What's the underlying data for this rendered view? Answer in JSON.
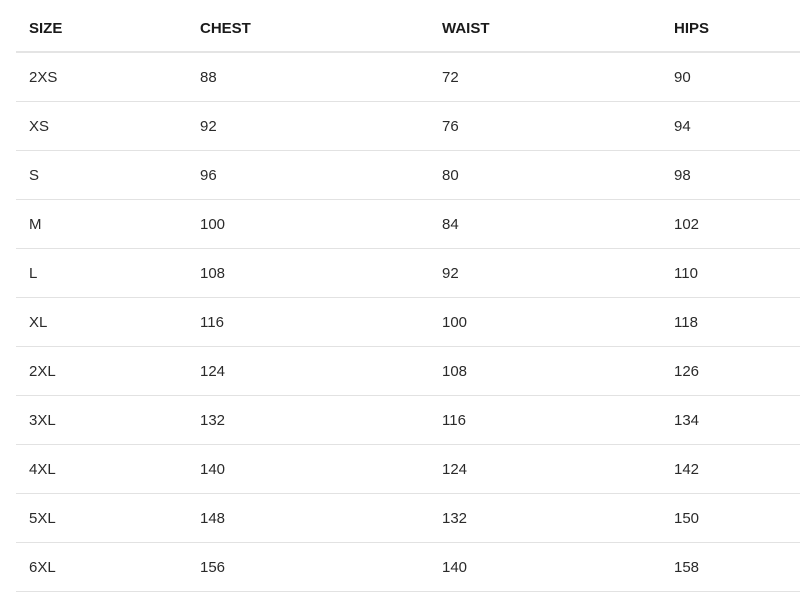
{
  "table": {
    "headers": [
      "SIZE",
      "CHEST",
      "WAIST",
      "HIPS"
    ],
    "rows": [
      [
        "2XS",
        "88",
        "72",
        "90"
      ],
      [
        "XS",
        "92",
        "76",
        "94"
      ],
      [
        "S",
        "96",
        "80",
        "98"
      ],
      [
        "M",
        "100",
        "84",
        "102"
      ],
      [
        "L",
        "108",
        "92",
        "110"
      ],
      [
        "XL",
        "116",
        "100",
        "118"
      ],
      [
        "2XL",
        "124",
        "108",
        "126"
      ],
      [
        "3XL",
        "132",
        "116",
        "134"
      ],
      [
        "4XL",
        "140",
        "124",
        "142"
      ],
      [
        "5XL",
        "148",
        "132",
        "150"
      ],
      [
        "6XL",
        "156",
        "140",
        "158"
      ]
    ]
  }
}
